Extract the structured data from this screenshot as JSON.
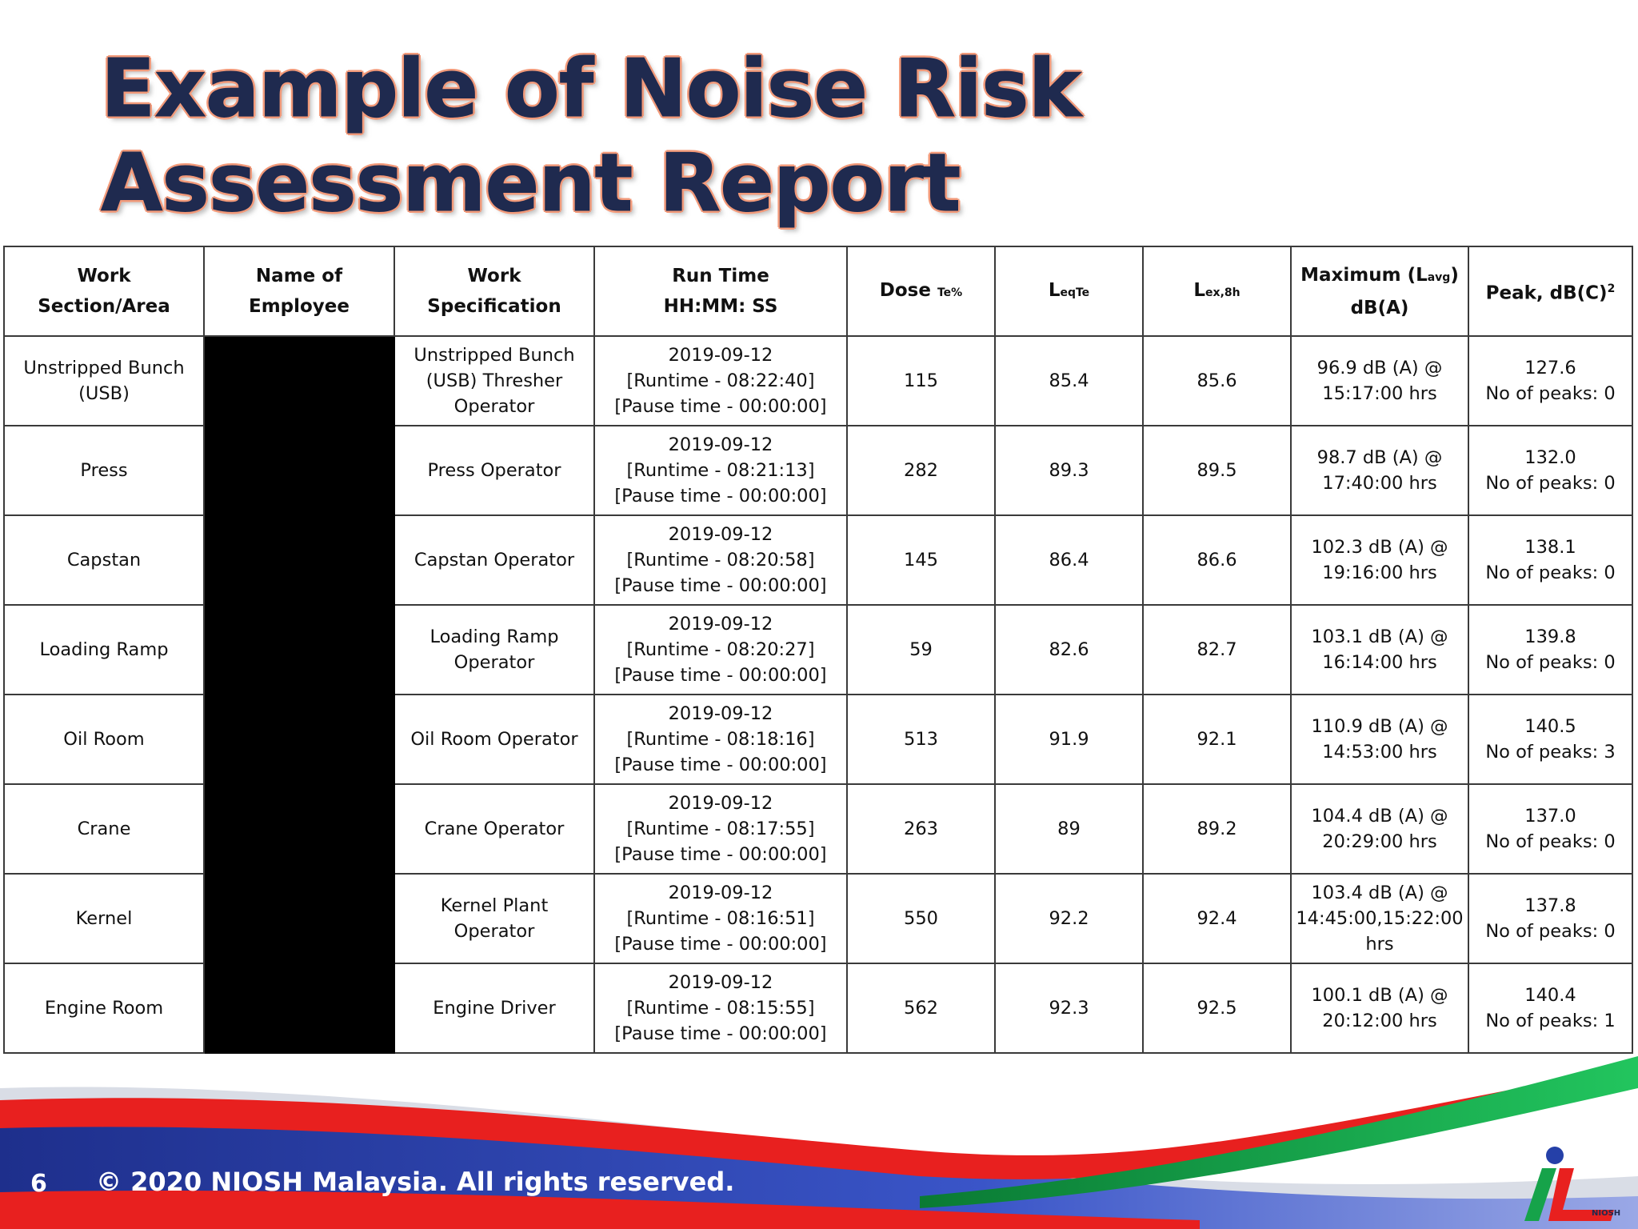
{
  "slide": {
    "title": "Example of Noise Risk Assessment Report",
    "slide_number": "6",
    "copyright": "© 2020 NIOSH Malaysia. All rights reserved.",
    "logo_text": "NIOSH"
  },
  "table": {
    "headers": {
      "work_section": "Work Section/Area",
      "name_line1": "Name of",
      "name_line2": "Employee",
      "work_spec": "Work Specification",
      "run_time_line1": "Run Time",
      "run_time_line2": "HH:MM: SS",
      "dose": "Dose",
      "dose_sub": "Te%",
      "leq": "L",
      "leq_sub": "eqTe",
      "lex": "L",
      "lex_sub": "ex,8h",
      "max_line1": "Maximum (L",
      "max_sub": "avg",
      "max_close": ")",
      "max_line2": "dB(A)",
      "peak": "Peak, dB(C)",
      "peak_sup": "2"
    },
    "rows": [
      {
        "section": [
          "Unstripped Bunch",
          "(USB)"
        ],
        "spec": [
          "Unstripped Bunch",
          "(USB) Thresher",
          "Operator"
        ],
        "date": "2019-09-12",
        "runtime": "[Runtime - 08:22:40]",
        "pause": "[Pause time - 00:00:00]",
        "dose": "115",
        "leq": "85.4",
        "lex": "85.6",
        "max": [
          "96.9 dB (A) @",
          "15:17:00 hrs"
        ],
        "peak": "127.6",
        "peaks": "No of peaks: 0"
      },
      {
        "section": [
          "Press"
        ],
        "spec": [
          "Press Operator"
        ],
        "date": "2019-09-12",
        "runtime": "[Runtime - 08:21:13]",
        "pause": "[Pause time - 00:00:00]",
        "dose": "282",
        "leq": "89.3",
        "lex": "89.5",
        "max": [
          "98.7 dB (A) @",
          "17:40:00 hrs"
        ],
        "peak": "132.0",
        "peaks": "No of peaks: 0"
      },
      {
        "section": [
          "Capstan"
        ],
        "spec": [
          "Capstan Operator"
        ],
        "date": "2019-09-12",
        "runtime": "[Runtime - 08:20:58]",
        "pause": "[Pause time - 00:00:00]",
        "dose": "145",
        "leq": "86.4",
        "lex": "86.6",
        "max": [
          "102.3 dB (A) @",
          "19:16:00 hrs"
        ],
        "peak": "138.1",
        "peaks": "No of peaks: 0"
      },
      {
        "section": [
          "Loading Ramp"
        ],
        "spec": [
          "Loading Ramp",
          "Operator"
        ],
        "date": "2019-09-12",
        "runtime": "[Runtime - 08:20:27]",
        "pause": "[Pause time - 00:00:00]",
        "dose": "59",
        "leq": "82.6",
        "lex": "82.7",
        "max": [
          "103.1 dB (A) @",
          "16:14:00 hrs"
        ],
        "peak": "139.8",
        "peaks": "No of peaks: 0"
      },
      {
        "section": [
          "Oil Room"
        ],
        "spec": [
          "Oil Room Operator"
        ],
        "date": "2019-09-12",
        "runtime": "[Runtime - 08:18:16]",
        "pause": "[Pause time - 00:00:00]",
        "dose": "513",
        "leq": "91.9",
        "lex": "92.1",
        "max": [
          "110.9 dB (A) @",
          "14:53:00 hrs"
        ],
        "peak": "140.5",
        "peaks": "No of peaks: 3"
      },
      {
        "section": [
          "Crane"
        ],
        "spec": [
          "Crane Operator"
        ],
        "date": "2019-09-12",
        "runtime": "[Runtime - 08:17:55]",
        "pause": "[Pause time - 00:00:00]",
        "dose": "263",
        "leq": "89",
        "lex": "89.2",
        "max": [
          "104.4 dB (A) @",
          "20:29:00 hrs"
        ],
        "peak": "137.0",
        "peaks": "No of peaks: 0"
      },
      {
        "section": [
          "Kernel"
        ],
        "spec": [
          "Kernel Plant",
          "Operator"
        ],
        "date": "2019-09-12",
        "runtime": "[Runtime - 08:16:51]",
        "pause": "[Pause time - 00:00:00]",
        "dose": "550",
        "leq": "92.2",
        "lex": "92.4",
        "max": [
          "103.4 dB (A) @",
          "14:45:00,15:22:00",
          "hrs"
        ],
        "peak": "137.8",
        "peaks": "No of peaks: 0"
      },
      {
        "section": [
          "Engine Room"
        ],
        "spec": [
          "Engine Driver"
        ],
        "date": "2019-09-12",
        "runtime": "[Runtime - 08:15:55]",
        "pause": "[Pause time - 00:00:00]",
        "dose": "562",
        "leq": "92.3",
        "lex": "92.5",
        "max": [
          "100.1 dB (A) @",
          "20:12:00 hrs"
        ],
        "peak": "140.4",
        "peaks": "No of peaks: 1"
      }
    ]
  },
  "colors": {
    "title_fill": "#1f2a4f",
    "title_outline": "#f29a7a",
    "band_red": "#e8201f",
    "band_blue": "#2540a8",
    "band_green": "#16a34a"
  }
}
